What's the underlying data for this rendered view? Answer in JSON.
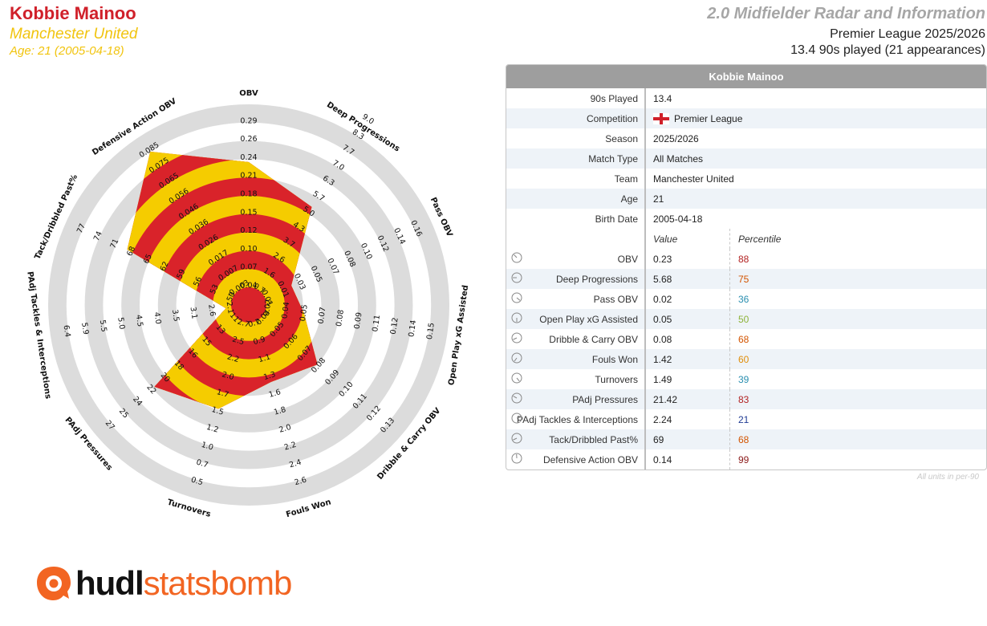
{
  "header": {
    "player_name": "Kobbie Mainoo",
    "team": "Manchester United",
    "age_line": "Age: 21 (2005-04-18)",
    "radar_title": "2.0 Midfielder Radar and Information",
    "competition_line": "Premier League 2025/2026",
    "nineties_line": "13.4 90s played (21 appearances)"
  },
  "colors": {
    "red": "#d9232a",
    "yellow": "#f5cc00",
    "ring_grey": "#dcdcdc"
  },
  "chart_data": {
    "type": "radar",
    "title": "2.0 Midfielder Radar and Information",
    "axes": [
      {
        "name": "OBV",
        "value": 0.23,
        "min": 0.04,
        "max": 0.29,
        "ticks": [
          "0.04",
          "0.07",
          "0.10",
          "0.12",
          "0.15",
          "0.18",
          "0.21",
          "0.24",
          "0.26",
          "0.29"
        ]
      },
      {
        "name": "Deep Progressions",
        "value": 5.68,
        "min": 0.7,
        "max": 9.0,
        "ticks": [
          "0.7",
          "1.6",
          "2.6",
          "3.7",
          "4.3",
          "5.0",
          "5.7",
          "6.3",
          "7.0",
          "7.7",
          "8.3",
          "9.0"
        ],
        "inner_ticks": [
          "0.7",
          "1.6",
          "2.6",
          "3.7"
        ]
      },
      {
        "name": "Pass OBV",
        "value": 0.02,
        "min": -0.01,
        "max": 0.16,
        "ticks": [
          "-0.01",
          "0.01",
          "0.03",
          "0.05",
          "0.07",
          "0.08",
          "0.10",
          "0.12",
          "0.14",
          "0.16"
        ]
      },
      {
        "name": "Open Play xG Assisted",
        "value": 0.05,
        "min": 0.02,
        "max": 0.15,
        "ticks": [
          "0.02",
          "0.04",
          "0.05",
          "0.07",
          "0.08",
          "0.09",
          "0.11",
          "0.12",
          "0.14",
          "0.15"
        ]
      },
      {
        "name": "Dribble & Carry OBV",
        "value": 0.08,
        "min": 0.04,
        "max": 0.13,
        "ticks": [
          "0.04",
          "0.05",
          "0.06",
          "0.07",
          "0.08",
          "0.09",
          "0.10",
          "0.11",
          "0.12",
          "0.13"
        ]
      },
      {
        "name": "Fouls Won",
        "value": 1.42,
        "min": 0.7,
        "max": 2.6,
        "ticks": [
          "0.7",
          "0.9",
          "1.1",
          "1.3",
          "1.6",
          "1.8",
          "2.0",
          "2.2",
          "2.4",
          "2.6"
        ]
      },
      {
        "name": "Turnovers",
        "value": 1.49,
        "min": 2.7,
        "max": 0.5,
        "ticks": [
          "2.7",
          "2.5",
          "2.2",
          "2.0",
          "1.7",
          "1.5",
          "1.2",
          "1.0",
          "0.7",
          "0.5"
        ]
      },
      {
        "name": "PAdj Pressures",
        "value": 21.42,
        "min": 11,
        "max": 27,
        "ticks": [
          "11",
          "13",
          "15",
          "16",
          "18",
          "20",
          "22",
          "24",
          "25",
          "27"
        ]
      },
      {
        "name": "PAdj Tackles & Interceptions",
        "value": 2.24,
        "min": 2.1,
        "max": 6.4,
        "ticks": [
          "2.1",
          "2.6",
          "3.1",
          "3.5",
          "4.0",
          "4.5",
          "5.0",
          "5.5",
          "5.9",
          "6.4"
        ]
      },
      {
        "name": "Tack/Dribbled Past%",
        "value": 69,
        "min": 50,
        "max": 77,
        "ticks": [
          "50",
          "53",
          "56",
          "59",
          "62",
          "65",
          "68",
          "71",
          "74",
          "77"
        ]
      },
      {
        "name": "Defensive Action OBV",
        "value": 0.14,
        "min": -0.003,
        "max": 0.085,
        "ticks": [
          "-0.003",
          "0.007",
          "0.017",
          "0.026",
          "0.036",
          "0.046",
          "0.056",
          "0.065",
          "0.075",
          "0.085"
        ]
      }
    ]
  },
  "table": {
    "header_name": "Kobbie Mainoo",
    "info_rows": [
      {
        "label": "90s Played",
        "value": "13.4"
      },
      {
        "label": "Competition",
        "value": "Premier League",
        "flag": "england"
      },
      {
        "label": "Season",
        "value": "2025/2026"
      },
      {
        "label": "Match Type",
        "value": "All Matches"
      },
      {
        "label": "Team",
        "value": "Manchester United"
      },
      {
        "label": "Age",
        "value": "21"
      },
      {
        "label": "Birth Date",
        "value": "2005-04-18"
      }
    ],
    "col_value": "Value",
    "col_percentile": "Percentile",
    "metrics": [
      {
        "label": "OBV",
        "value": "0.23",
        "percentile": "88",
        "color": "#b22222"
      },
      {
        "label": "Deep Progressions",
        "value": "5.68",
        "percentile": "75",
        "color": "#d35400"
      },
      {
        "label": "Pass OBV",
        "value": "0.02",
        "percentile": "36",
        "color": "#2a8fb0"
      },
      {
        "label": "Open Play xG Assisted",
        "value": "0.05",
        "percentile": "50",
        "color": "#8db33a"
      },
      {
        "label": "Dribble & Carry OBV",
        "value": "0.08",
        "percentile": "68",
        "color": "#d35400"
      },
      {
        "label": "Fouls Won",
        "value": "1.42",
        "percentile": "60",
        "color": "#e08e0b"
      },
      {
        "label": "Turnovers",
        "value": "1.49",
        "percentile": "39",
        "color": "#2a8fb0"
      },
      {
        "label": "PAdj Pressures",
        "value": "21.42",
        "percentile": "83",
        "color": "#b22222"
      },
      {
        "label": "PAdj Tackles & Interceptions",
        "value": "2.24",
        "percentile": "21",
        "color": "#1f3a93"
      },
      {
        "label": "Tack/Dribbled Past%",
        "value": "69",
        "percentile": "68",
        "color": "#d35400"
      },
      {
        "label": "Defensive Action OBV",
        "value": "0.14",
        "percentile": "99",
        "color": "#8b1a1a"
      }
    ],
    "footnote": "All units in per-90"
  },
  "logo": {
    "hudl": "hudl",
    "statsbomb": "statsbomb",
    "icon": "hudl-statsbomb-logo-icon"
  }
}
